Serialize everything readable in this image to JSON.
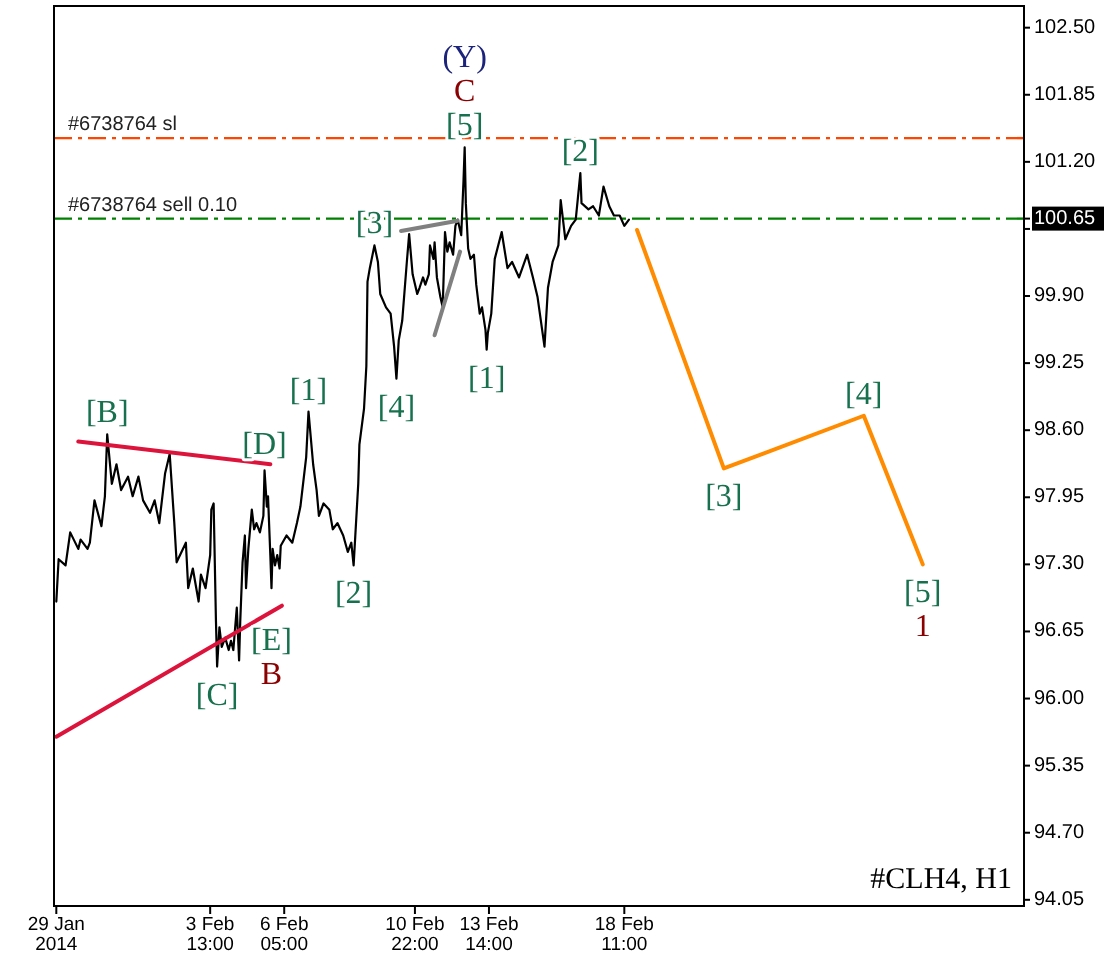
{
  "chart_data": {
    "type": "line",
    "xlim": [
      "2014-01-28T22:00",
      "2014-03-04T20:30"
    ],
    "ylim": [
      93.99,
      102.71
    ],
    "xticks": [
      {
        "value": "2014-01-29",
        "label": "29 Jan 2014"
      },
      {
        "value": "2014-02-03T13:00",
        "label": "3 Feb 13:00"
      },
      {
        "value": "2014-02-06T05:00",
        "label": "6 Feb 05:00"
      },
      {
        "value": "2014-02-10T22:00",
        "label": "10 Feb 22:00"
      },
      {
        "value": "2014-02-13T14:00",
        "label": "13 Feb 14:00"
      },
      {
        "value": "2014-02-18T11:00",
        "label": "18 Feb 11:00"
      }
    ],
    "yticks": [
      {
        "value": 102.5,
        "label": "102.50"
      },
      101.85,
      {
        "value": 101.2,
        "label": "101.20"
      },
      100.65,
      {
        "value": 100.55,
        "label": null
      },
      {
        "value": 99.9,
        "label": "99.90"
      },
      99.25,
      {
        "value": 98.6,
        "label": "98.60"
      },
      97.95,
      {
        "value": 97.3,
        "label": "97.30"
      },
      96.65,
      {
        "value": 96.0,
        "label": "96.00"
      },
      95.35,
      {
        "value": 94.7,
        "label": "94.70"
      },
      94.05
    ],
    "series": [
      {
        "color": "#000000",
        "x": [
          "2014-01-29T00:00",
          "2014-01-29T02:00",
          "2014-01-29T08:00",
          "2014-01-29T12:00",
          "2014-01-29T19:00",
          "2014-01-29T21:00",
          "2014-01-30T03:00",
          "2014-01-30T05:00",
          "2014-01-30T09:00",
          "2014-01-30T15:00",
          "2014-01-30T18:00",
          "2014-01-30T20:00",
          "2014-01-31T00:00",
          "2014-01-31T04:00",
          "2014-01-31T08:00",
          "2014-01-31T14:00",
          "2014-01-31T18:00",
          "2014-01-31T23:00",
          "2014-02-01T03:00",
          "2014-02-01T09:00",
          "2014-02-01T13:00",
          "2014-02-01T17:00",
          "2014-02-01T22:00",
          "2014-02-02T02:00",
          "2014-02-02T06:00",
          "2014-02-02T08:00",
          "2014-02-02T16:00",
          "2014-02-02T18:00",
          "2014-02-02T22:00",
          "2014-02-03T03:00",
          "2014-02-03T05:00",
          "2014-02-03T09:00",
          "2014-02-03T13:00",
          "2014-02-03T14:00",
          "2014-02-03T16:00",
          "2014-02-03T18:00",
          "2014-02-03T19:00",
          "2014-02-03T21:00",
          "2014-02-03T23:00",
          "2014-02-04T02:00",
          "2014-02-04T05:00",
          "2014-02-04T07:00",
          "2014-02-04T09:00",
          "2014-02-04T12:00",
          "2014-02-04T14:00",
          "2014-02-04T15:00",
          "2014-02-04T17:00",
          "2014-02-04T19:00",
          "2014-02-04T20:00",
          "2014-02-04T22:00",
          "2014-02-05T01:00",
          "2014-02-05T03:00",
          "2014-02-05T05:00",
          "2014-02-05T08:00",
          "2014-02-05T11:00",
          "2014-02-05T12:00",
          "2014-02-05T14:00",
          "2014-02-05T15:00",
          "2014-02-05T17:00",
          "2014-02-05T18:00",
          "2014-02-05T19:00",
          "2014-02-05T21:00",
          "2014-02-05T23:00",
          "2014-02-06T01:00",
          "2014-02-06T02:00",
          "2014-02-06T07:00",
          "2014-02-06T12:00",
          "2014-02-06T16:00",
          "2014-02-06T19:00",
          "2014-02-07T00:00",
          "2014-02-07T02:00",
          "2014-02-07T06:00",
          "2014-02-07T09:00",
          "2014-02-07T11:00",
          "2014-02-07T15:00",
          "2014-02-07T20:00",
          "2014-02-07T23:00",
          "2014-02-08T03:00",
          "2014-02-08T08:00",
          "2014-02-08T12:00",
          "2014-02-08T15:00",
          "2014-02-08T17:00",
          "2014-02-08T21:00",
          "2014-02-08T22:00",
          "2014-02-09T02:00",
          "2014-02-09T04:00",
          "2014-02-09T05:00",
          "2014-02-09T07:00",
          "2014-02-09T11:00",
          "2014-02-09T14:00",
          "2014-02-09T16:00",
          "2014-02-09T21:00",
          "2014-02-10T01:00",
          "2014-02-10T04:00",
          "2014-02-10T06:00",
          "2014-02-10T08:00",
          "2014-02-10T11:00",
          "2014-02-10T15:00",
          "2014-02-10T17:00",
          "2014-02-10T20:00",
          "2014-02-11T00:00",
          "2014-02-11T02:00",
          "2014-02-11T05:00",
          "2014-02-11T07:00",
          "2014-02-11T10:00",
          "2014-02-11T11:00",
          "2014-02-11T14:00",
          "2014-02-11T15:00",
          "2014-02-11T17:00",
          "2014-02-11T20:00",
          "2014-02-11T22:00",
          "2014-02-12T00:00",
          "2014-02-12T02:00",
          "2014-02-12T04:00",
          "2014-02-12T07:00",
          "2014-02-12T09:00",
          "2014-02-12T11:00",
          "2014-02-12T14:00",
          "2014-02-12T16:00",
          "2014-02-12T17:00",
          "2014-02-12T18:00",
          "2014-02-12T20:00",
          "2014-02-12T22:00",
          "2014-02-13T01:00",
          "2014-02-13T03:00",
          "2014-02-13T06:00",
          "2014-02-13T08:00",
          "2014-02-13T11:00",
          "2014-02-13T12:00",
          "2014-02-13T13:00",
          "2014-02-13T16:00",
          "2014-02-13T19:00",
          "2014-02-14T01:00",
          "2014-02-14T06:00",
          "2014-02-14T10:00",
          "2014-02-14T16:00",
          "2014-02-14T23:00",
          "2014-02-15T04:00",
          "2014-02-15T08:00",
          "2014-02-15T14:00",
          "2014-02-15T17:00",
          "2014-02-15T21:00",
          "2014-02-16T02:00",
          "2014-02-16T04:00",
          "2014-02-16T08:00",
          "2014-02-16T13:00",
          "2014-02-16T17:00",
          "2014-02-16T21:00",
          "2014-02-16T22:00",
          "2014-02-17T04:00",
          "2014-02-17T08:00",
          "2014-02-17T13:00",
          "2014-02-17T17:00",
          "2014-02-17T22:00",
          "2014-02-18T02:00",
          "2014-02-18T07:00",
          "2014-02-18T11:00",
          "2014-02-18T15:00"
        ],
        "values": [
          96.94,
          97.35,
          97.29,
          97.61,
          97.45,
          97.54,
          97.45,
          97.51,
          97.92,
          97.67,
          97.96,
          98.56,
          98.08,
          98.27,
          98.02,
          98.15,
          97.96,
          98.15,
          97.92,
          97.8,
          97.92,
          97.7,
          98.18,
          98.37,
          97.7,
          97.32,
          97.51,
          97.07,
          97.26,
          96.94,
          97.2,
          97.07,
          97.39,
          97.83,
          97.89,
          96.75,
          96.31,
          96.69,
          96.5,
          96.59,
          96.47,
          96.56,
          96.47,
          96.88,
          96.37,
          96.75,
          97.32,
          97.58,
          97.07,
          97.45,
          97.83,
          97.64,
          97.7,
          97.61,
          97.77,
          98.21,
          97.86,
          97.96,
          97.39,
          97.07,
          97.45,
          97.29,
          97.39,
          97.26,
          97.48,
          97.58,
          97.51,
          97.7,
          97.86,
          98.34,
          98.78,
          98.27,
          98.02,
          97.77,
          97.89,
          97.83,
          97.64,
          97.7,
          97.58,
          97.42,
          97.51,
          97.29,
          98.08,
          98.46,
          98.81,
          99.22,
          100.04,
          100.17,
          100.39,
          100.23,
          99.92,
          99.79,
          99.73,
          99.41,
          99.1,
          99.47,
          99.66,
          100.23,
          100.5,
          100.11,
          99.92,
          99.98,
          100.08,
          100.01,
          100.11,
          100.39,
          100.26,
          100.42,
          100.08,
          99.89,
          99.79,
          100.52,
          100.33,
          100.42,
          100.3,
          100.58,
          100.64,
          100.49,
          101.02,
          101.34,
          100.8,
          100.36,
          100.26,
          100.3,
          100.01,
          99.73,
          99.79,
          99.57,
          99.38,
          99.54,
          99.73,
          100.26,
          100.52,
          100.17,
          100.23,
          100.08,
          100.3,
          100.08,
          99.89,
          99.41,
          99.98,
          100.23,
          100.39,
          100.83,
          100.45,
          100.58,
          100.64,
          101.09,
          100.8,
          100.74,
          100.77,
          100.68,
          100.96,
          100.77,
          100.68,
          100.68,
          100.58,
          100.64
        ]
      },
      {
        "color": "#ff8c00",
        "x": [
          "2014-02-18T22:00",
          "2014-02-22T01:00",
          "2014-02-27T02:00",
          "2014-03-01T05:00"
        ],
        "values": [
          100.54,
          98.23,
          98.74,
          97.3
        ]
      },
      {
        "color": "#dc143c",
        "x": [
          "2014-01-29T19:00",
          "2014-02-05T17:00"
        ],
        "values": [
          98.49,
          98.27
        ]
      },
      {
        "color": "#dc143c",
        "x": [
          "2014-01-29T00:00",
          "2014-02-06T03:00"
        ],
        "values": [
          95.63,
          96.9
        ]
      },
      {
        "color": "#808080",
        "x": [
          "2014-02-10T10:00",
          "2014-02-12T11:00"
        ],
        "values": [
          100.53,
          100.63
        ]
      },
      {
        "color": "#808080",
        "x": [
          "2014-02-11T15:00",
          "2014-02-12T13:00"
        ],
        "values": [
          99.52,
          100.33
        ]
      }
    ],
    "ref_lines": [
      {
        "axis": "y",
        "value": 101.43,
        "label": "#6738764 sl",
        "color": "#ff4500",
        "line_style": "dashed"
      },
      {
        "axis": "y",
        "value": 100.65,
        "label": "#6738764 sell 0.10",
        "color": "#008000",
        "line_style": "dashed"
      }
    ],
    "annotations": [
      {
        "text": "[5]",
        "x": "2014-02-12T17:00",
        "y": 101.34
      },
      {
        "text": "C",
        "x": "2014-02-12T17:00",
        "y": 101.34
      },
      {
        "text": "(Y)",
        "x": "2014-02-12T17:00",
        "y": 101.34
      },
      {
        "text": "[3]",
        "x": "2014-02-09T11:00",
        "y": 100.39
      },
      {
        "text": "[1]",
        "x": "2014-02-07T02:00",
        "y": 98.78
      },
      {
        "text": "[4]",
        "x": "2014-02-10T06:00",
        "y": 99.1
      },
      {
        "text": "[B]",
        "x": "2014-01-30T20:00",
        "y": 98.56
      },
      {
        "text": "[D]",
        "x": "2014-02-05T12:00",
        "y": 98.21
      },
      {
        "text": "[2]",
        "x": "2014-02-08T17:00",
        "y": 97.29
      },
      {
        "text": "[E]",
        "x": "2014-02-05T18:00",
        "y": 97.07
      },
      {
        "text": "B",
        "x": "2014-02-05T18:00",
        "y": 97.07
      },
      {
        "text": "[C]",
        "x": "2014-02-03T19:00",
        "y": 96.31
      },
      {
        "text": "[1]",
        "x": "2014-02-13T12:00",
        "y": 99.38
      },
      {
        "text": "[2]",
        "x": "2014-02-16T21:00",
        "y": 101.09
      },
      {
        "text": "[3]",
        "x": "2014-02-22T01:00",
        "y": 98.23
      },
      {
        "text": "[4]",
        "x": "2014-02-27T02:00",
        "y": 98.74
      },
      {
        "text": "[5]",
        "x": "2014-03-01T05:00",
        "y": 97.3
      },
      {
        "text": "1",
        "x": "2014-03-01T05:00",
        "y": 97.3
      },
      "#CLH4, H1"
    ]
  }
}
